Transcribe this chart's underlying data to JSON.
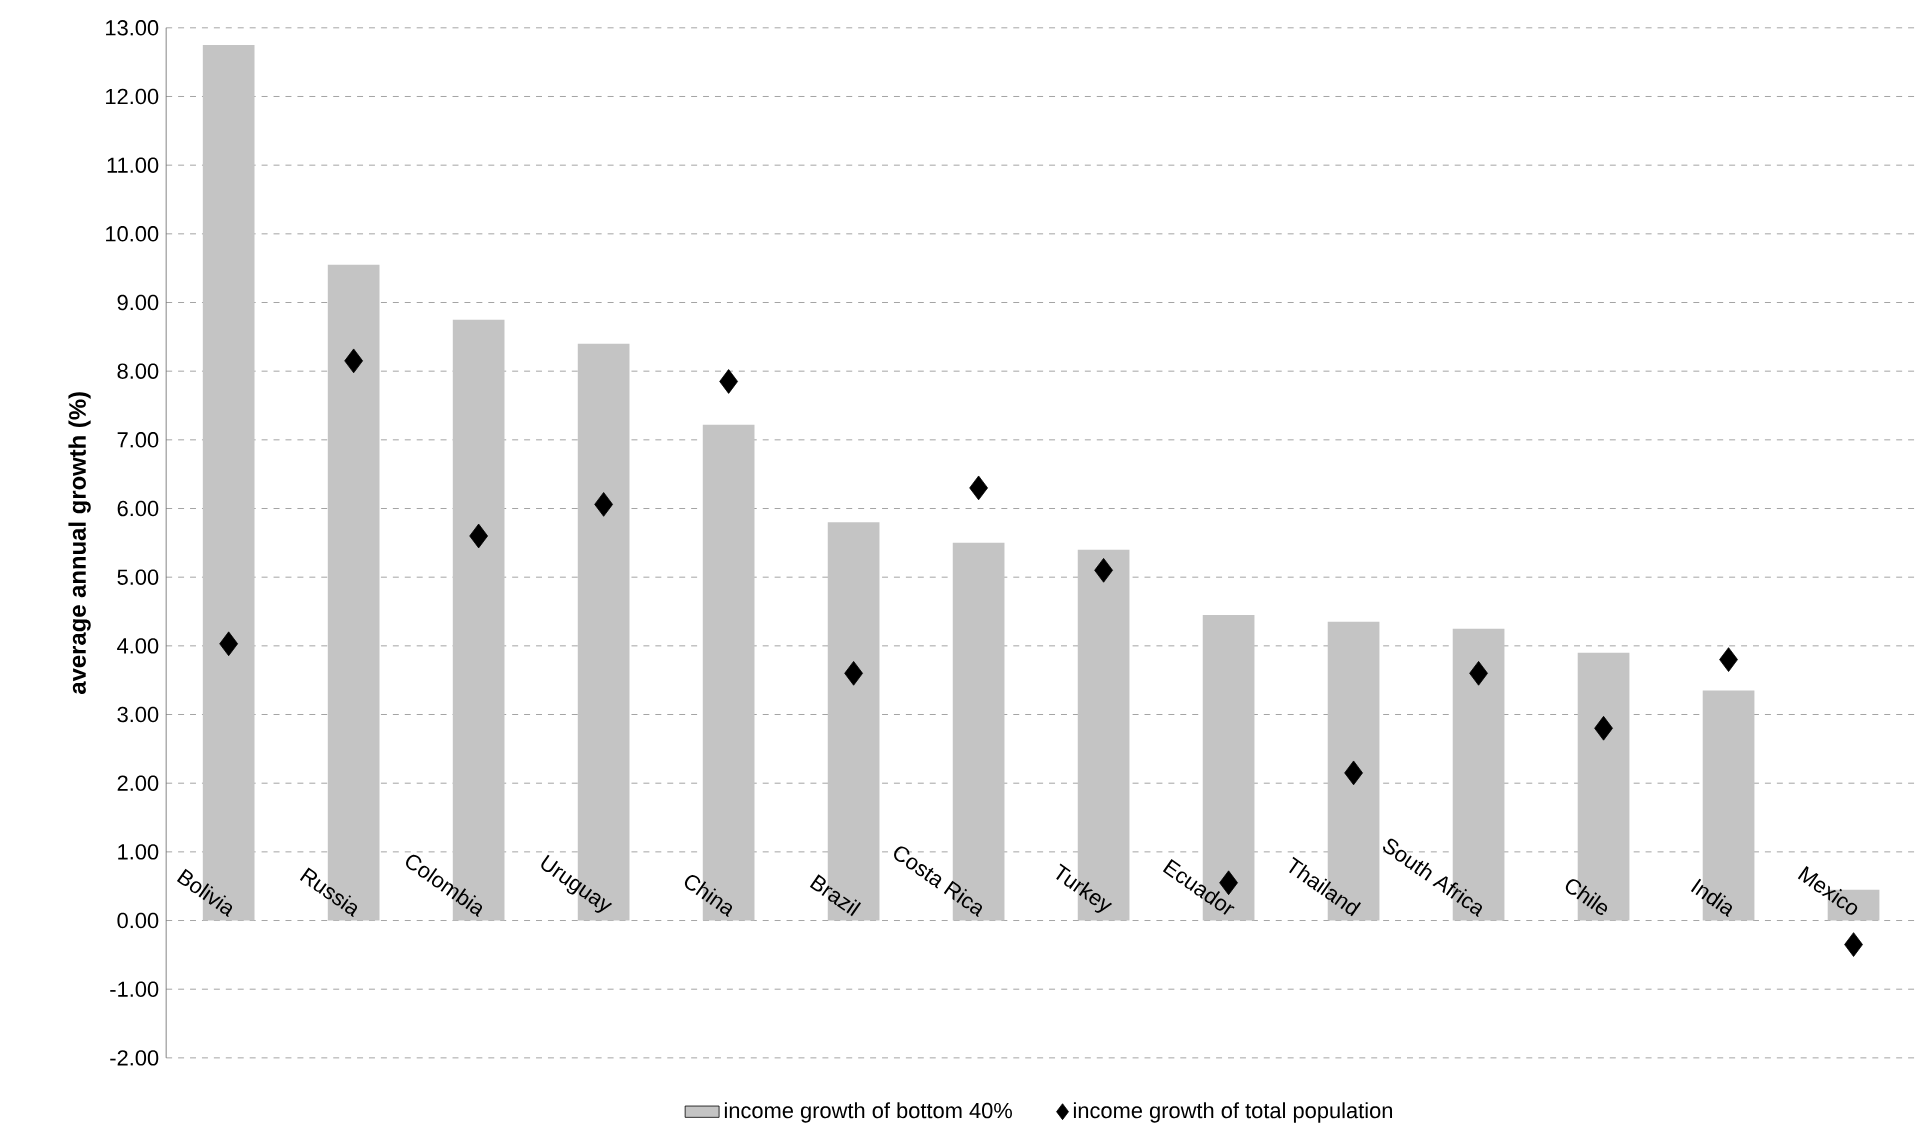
{
  "chart_data": {
    "type": "bar",
    "ylabel": "average annual growth (%)",
    "categories": [
      "Bolivia",
      "Russia",
      "Colombia",
      "Uruguay",
      "China",
      "Brazil",
      "Costa Rica",
      "Turkey",
      "Ecuador",
      "Thailand",
      "South Africa",
      "Chile",
      "India",
      "Mexico"
    ],
    "series": [
      {
        "name": "income growth of bottom 40%",
        "color": "#c4c4c4",
        "values": [
          12.75,
          9.55,
          8.75,
          8.4,
          7.22,
          5.8,
          5.5,
          5.4,
          4.45,
          4.35,
          4.25,
          3.9,
          3.35,
          0.45
        ]
      },
      {
        "name": "income growth of total population",
        "type": "scatter",
        "marker": "diamond",
        "color": "#000000",
        "values": [
          4.03,
          8.15,
          5.6,
          6.06,
          7.85,
          3.6,
          6.3,
          5.1,
          0.55,
          2.15,
          3.6,
          2.8,
          3.8,
          -0.35
        ]
      }
    ],
    "ylim": [
      -2,
      13
    ],
    "yticks": [
      {
        "value": -2,
        "label": "-2.00"
      },
      {
        "value": -1,
        "label": "-1.00"
      },
      {
        "value": 0,
        "label": "0.00"
      },
      {
        "value": 1,
        "label": "1.00"
      },
      {
        "value": 2,
        "label": "2.00"
      },
      {
        "value": 3,
        "label": "3.00"
      },
      {
        "value": 4,
        "label": "4.00"
      },
      {
        "value": 5,
        "label": "5.00"
      },
      {
        "value": 6,
        "label": "6.00"
      },
      {
        "value": 7,
        "label": "7.00"
      },
      {
        "value": 8,
        "label": "8.00"
      },
      {
        "value": 9,
        "label": "9.00"
      },
      {
        "value": 10,
        "label": "10.00"
      },
      {
        "value": 11,
        "label": "11.00"
      },
      {
        "value": 12,
        "label": "12.00"
      },
      {
        "value": 13,
        "label": "13.00"
      }
    ],
    "grid": "y",
    "legend": "bottom"
  }
}
